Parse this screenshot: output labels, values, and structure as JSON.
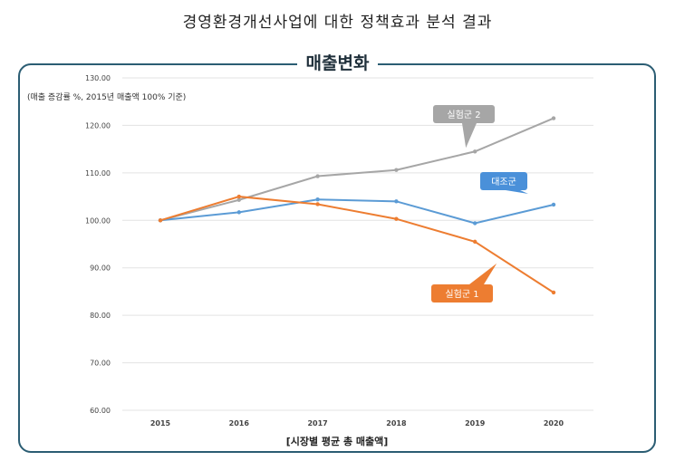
{
  "page_title": "경영환경개선사업에 대한 정책효과 분석 결과",
  "chart_data": {
    "type": "line",
    "title": "매출변화",
    "ylabel": "(매출 증감률 %, 2015년 매출액 100% 기준)",
    "xlabel": "[시장별 평균 총 매출액]",
    "x": [
      "2015",
      "2016",
      "2017",
      "2018",
      "2019",
      "2020"
    ],
    "ylim": [
      60,
      130
    ],
    "yticks": [
      "130.00",
      "120.00",
      "110.00",
      "100.00",
      "90.00",
      "80.00",
      "70.00",
      "60.00"
    ],
    "grid": true,
    "series": [
      {
        "name": "실험군 2",
        "values": [
          100.0,
          104.3,
          109.3,
          110.6,
          114.5,
          121.5
        ],
        "color": "#a6a6a6",
        "label_bg": "#a6a6a6"
      },
      {
        "name": "대조군",
        "values": [
          100.0,
          101.7,
          104.4,
          104.0,
          99.4,
          103.3
        ],
        "color": "#5b9bd5",
        "label_bg": "#4a90d9"
      },
      {
        "name": "실험군 1",
        "values": [
          100.0,
          105.0,
          103.4,
          100.3,
          95.5,
          84.8
        ],
        "color": "#ed7d31",
        "label_bg": "#ed7d31"
      }
    ]
  }
}
